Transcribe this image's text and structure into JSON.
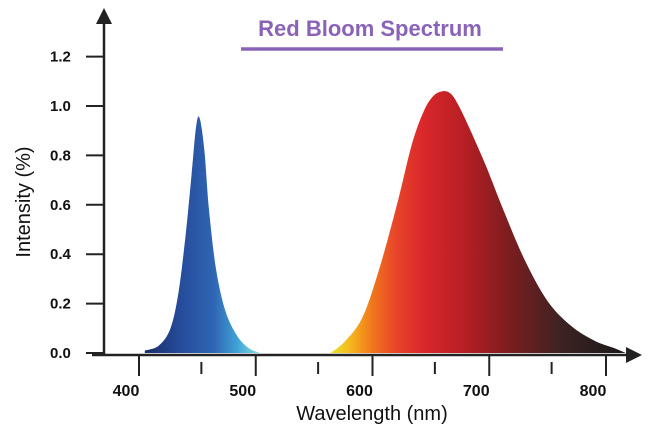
{
  "chart_data": {
    "type": "area",
    "title": "Red Bloom Spectrum",
    "xlabel": "Wavelength (nm)",
    "ylabel": "Intensity (%)",
    "xlim": [
      350,
      830
    ],
    "ylim": [
      0,
      1.4
    ],
    "x_ticks": [
      {
        "value": 400,
        "label": "400"
      },
      {
        "value": 500,
        "label": "500"
      },
      {
        "value": 600,
        "label": "600"
      },
      {
        "value": 700,
        "label": "700"
      },
      {
        "value": 800,
        "label": "800"
      }
    ],
    "x_minor_ticks": [
      450,
      550,
      650,
      750
    ],
    "y_ticks": [
      {
        "value": 0.0,
        "label": "0.0"
      },
      {
        "value": 0.2,
        "label": "0.2"
      },
      {
        "value": 0.4,
        "label": "0.4"
      },
      {
        "value": 0.6,
        "label": "0.6"
      },
      {
        "value": 0.8,
        "label": "0.8"
      },
      {
        "value": 1.0,
        "label": "1.0"
      },
      {
        "value": 1.2,
        "label": "1.2"
      }
    ],
    "grid": false,
    "legend": "none",
    "colors": {
      "title": "#8a63b8",
      "axis": "#222222",
      "text": "#111111"
    },
    "series": [
      {
        "x": [
          393,
          405,
          415,
          422,
          428,
          433,
          437,
          440,
          444,
          448,
          454,
          462,
          472,
          482,
          492
        ],
        "y": [
          0.01,
          0.03,
          0.1,
          0.25,
          0.48,
          0.72,
          0.92,
          0.95,
          0.82,
          0.58,
          0.34,
          0.17,
          0.07,
          0.02,
          0.0
        ],
        "gradient": [
          {
            "at": 0.0,
            "color": "#1b2d68"
          },
          {
            "at": 0.3,
            "color": "#254b9a"
          },
          {
            "at": 0.6,
            "color": "#2f66b4"
          },
          {
            "at": 0.8,
            "color": "#3fa3d6"
          },
          {
            "at": 1.0,
            "color": "#8be0de"
          }
        ]
      },
      {
        "x": [
          552,
          565,
          580,
          595,
          610,
          622,
          632,
          640,
          648,
          655,
          662,
          672,
          685,
          700,
          718,
          738,
          758,
          778,
          795,
          805
        ],
        "y": [
          0.0,
          0.05,
          0.15,
          0.36,
          0.62,
          0.85,
          0.98,
          1.04,
          1.06,
          1.05,
          1.0,
          0.9,
          0.76,
          0.58,
          0.38,
          0.21,
          0.11,
          0.05,
          0.02,
          0.0
        ],
        "gradient": [
          {
            "at": 0.0,
            "color": "#e6e62a"
          },
          {
            "at": 0.07,
            "color": "#f5b51e"
          },
          {
            "at": 0.14,
            "color": "#f0781c"
          },
          {
            "at": 0.22,
            "color": "#e8452a"
          },
          {
            "at": 0.32,
            "color": "#d9262a"
          },
          {
            "at": 0.45,
            "color": "#b81f24"
          },
          {
            "at": 0.6,
            "color": "#7d1d20"
          },
          {
            "at": 0.78,
            "color": "#3d2222"
          },
          {
            "at": 1.0,
            "color": "#1a1a1a"
          }
        ]
      }
    ]
  }
}
